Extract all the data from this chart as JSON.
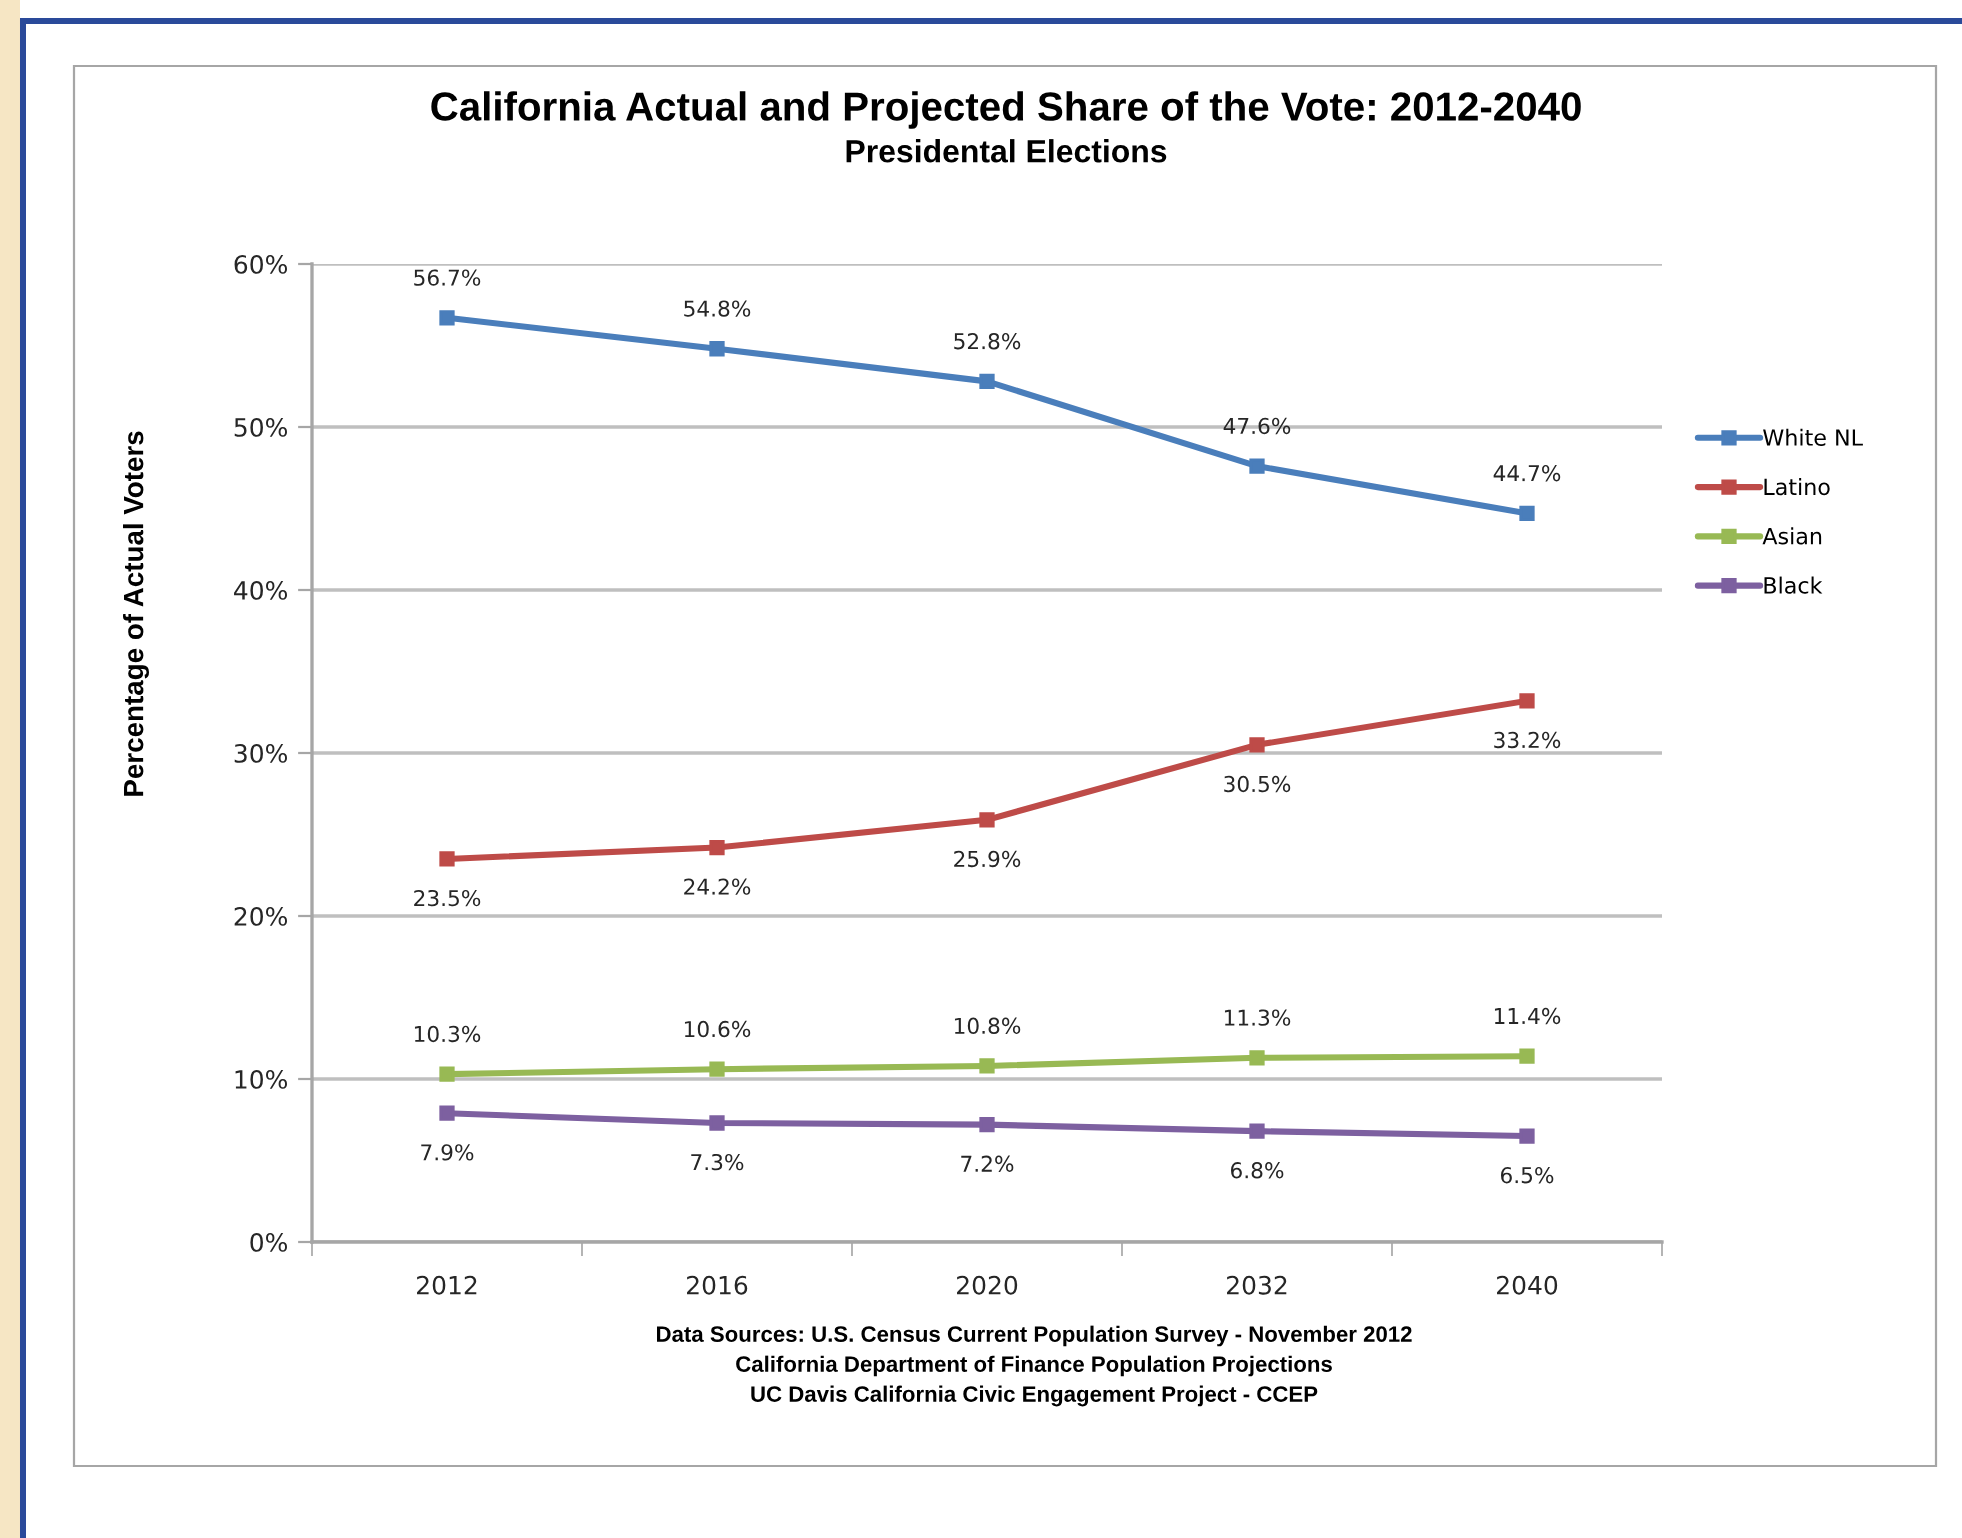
{
  "chart_data": {
    "type": "line",
    "title": "California Actual and Projected Share of the Vote: 2012-2040",
    "subtitle": "Presidental Elections",
    "ylabel": "Percentage of Actual Voters",
    "categories": [
      "2012",
      "2016",
      "2020",
      "2032",
      "2040"
    ],
    "series": [
      {
        "name": "White NL",
        "color": "#4a7ebb",
        "values": [
          56.7,
          54.8,
          52.8,
          47.6,
          44.7
        ],
        "value_labels": [
          "56.7%",
          "54.8%",
          "52.8%",
          "47.6%",
          "44.7%"
        ]
      },
      {
        "name": "Latino",
        "color": "#be4b48",
        "values": [
          23.5,
          24.2,
          25.9,
          30.5,
          33.2
        ],
        "value_labels": [
          "23.5%",
          "24.2%",
          "25.9%",
          "30.5%",
          "33.2%"
        ]
      },
      {
        "name": "Asian",
        "color": "#98b954",
        "values": [
          10.3,
          10.6,
          10.8,
          11.3,
          11.4
        ],
        "value_labels": [
          "10.3%",
          "10.6%",
          "10.8%",
          "11.3%",
          "11.4%"
        ]
      },
      {
        "name": "Black",
        "color": "#7d60a0",
        "values": [
          7.9,
          7.3,
          7.2,
          6.8,
          6.5
        ],
        "value_labels": [
          "7.9%",
          "7.3%",
          "7.2%",
          "6.8%",
          "6.5%"
        ]
      }
    ],
    "ylim": [
      0,
      60
    ],
    "yticks": [
      {
        "value": 0,
        "label": "0%"
      },
      {
        "value": 10,
        "label": "10%"
      },
      {
        "value": 20,
        "label": "20%"
      },
      {
        "value": 30,
        "label": "30%"
      },
      {
        "value": 40,
        "label": "40%"
      },
      {
        "value": 50,
        "label": "50%"
      },
      {
        "value": 60,
        "label": "60%"
      }
    ],
    "grid": "y",
    "legend": "right",
    "marker": "square",
    "line_style": "solid",
    "annotations": [
      "Data Sources: U.S. Census Current Population Survey - November 2012",
      "California Department of Finance Population Projections",
      "UC Davis California Civic Engagement Project - CCEP"
    ]
  }
}
